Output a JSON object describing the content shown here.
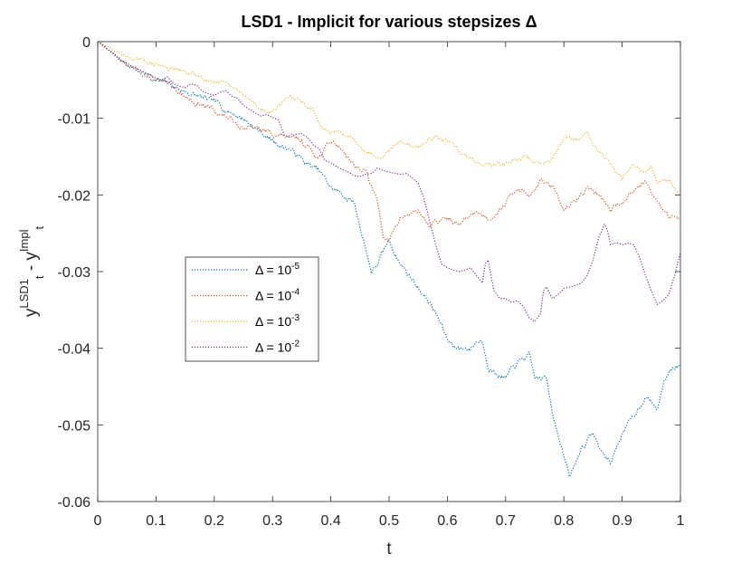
{
  "chart_data": {
    "type": "line",
    "title": "LSD1 - Implicit for various stepsizes Δ",
    "xlabel": "t",
    "ylabel": {
      "main": "y",
      "sub1": "t",
      "sup1": "LSD1",
      "mid": " - y",
      "sub2": "t",
      "sup2": "Impl"
    },
    "xlim": [
      0,
      1
    ],
    "ylim": [
      -0.06,
      0
    ],
    "xticks": [
      0,
      0.1,
      0.2,
      0.3,
      0.4,
      0.5,
      0.6,
      0.7,
      0.8,
      0.9,
      1
    ],
    "xtick_labels": [
      "0",
      "0.1",
      "0.2",
      "0.3",
      "0.4",
      "0.5",
      "0.6",
      "0.7",
      "0.8",
      "0.9",
      "1"
    ],
    "yticks": [
      0,
      -0.01,
      -0.02,
      -0.03,
      -0.04,
      -0.05,
      -0.06
    ],
    "ytick_labels": [
      "0",
      "-0.01",
      "-0.02",
      "-0.03",
      "-0.04",
      "-0.05",
      "-0.06"
    ],
    "legend_position": "middle-left",
    "series": [
      {
        "name": "Δ = 10^-5",
        "base": "Δ = 10",
        "exp": "-5",
        "color": "#0072BD",
        "noise": 0.00055,
        "seed": 7,
        "points": [
          [
            0,
            0
          ],
          [
            0.05,
            -0.003
          ],
          [
            0.1,
            -0.005
          ],
          [
            0.15,
            -0.0065
          ],
          [
            0.2,
            -0.008
          ],
          [
            0.25,
            -0.01
          ],
          [
            0.3,
            -0.013
          ],
          [
            0.33,
            -0.014
          ],
          [
            0.36,
            -0.016
          ],
          [
            0.38,
            -0.017
          ],
          [
            0.4,
            -0.019
          ],
          [
            0.42,
            -0.02
          ],
          [
            0.44,
            -0.021
          ],
          [
            0.45,
            -0.024
          ],
          [
            0.47,
            -0.03
          ],
          [
            0.48,
            -0.029
          ],
          [
            0.5,
            -0.026
          ],
          [
            0.52,
            -0.029
          ],
          [
            0.55,
            -0.032
          ],
          [
            0.57,
            -0.034
          ],
          [
            0.59,
            -0.037
          ],
          [
            0.6,
            -0.039
          ],
          [
            0.62,
            -0.04
          ],
          [
            0.64,
            -0.04
          ],
          [
            0.65,
            -0.039
          ],
          [
            0.66,
            -0.039
          ],
          [
            0.67,
            -0.042
          ],
          [
            0.68,
            -0.043
          ],
          [
            0.7,
            -0.044
          ],
          [
            0.72,
            -0.042
          ],
          [
            0.74,
            -0.041
          ],
          [
            0.75,
            -0.044
          ],
          [
            0.77,
            -0.044
          ],
          [
            0.78,
            -0.048
          ],
          [
            0.8,
            -0.054
          ],
          [
            0.81,
            -0.057
          ],
          [
            0.83,
            -0.053
          ],
          [
            0.85,
            -0.051
          ],
          [
            0.86,
            -0.053
          ],
          [
            0.87,
            -0.054
          ],
          [
            0.88,
            -0.055
          ],
          [
            0.9,
            -0.051
          ],
          [
            0.92,
            -0.049
          ],
          [
            0.94,
            -0.046
          ],
          [
            0.95,
            -0.047
          ],
          [
            0.96,
            -0.048
          ],
          [
            0.97,
            -0.045
          ],
          [
            0.98,
            -0.043
          ],
          [
            1,
            -0.042
          ]
        ]
      },
      {
        "name": "Δ = 10^-4",
        "base": "Δ = 10",
        "exp": "-4",
        "color": "#D95319",
        "noise": 0.0005,
        "seed": 13,
        "points": [
          [
            0,
            0
          ],
          [
            0.05,
            -0.003
          ],
          [
            0.1,
            -0.005
          ],
          [
            0.14,
            -0.0065
          ],
          [
            0.15,
            -0.007
          ],
          [
            0.17,
            -0.008
          ],
          [
            0.2,
            -0.009
          ],
          [
            0.25,
            -0.011
          ],
          [
            0.3,
            -0.012
          ],
          [
            0.35,
            -0.013
          ],
          [
            0.38,
            -0.015
          ],
          [
            0.4,
            -0.013
          ],
          [
            0.42,
            -0.014
          ],
          [
            0.44,
            -0.016
          ],
          [
            0.46,
            -0.017
          ],
          [
            0.48,
            -0.021
          ],
          [
            0.49,
            -0.025
          ],
          [
            0.5,
            -0.026
          ],
          [
            0.52,
            -0.023
          ],
          [
            0.55,
            -0.022
          ],
          [
            0.57,
            -0.024
          ],
          [
            0.6,
            -0.023
          ],
          [
            0.62,
            -0.024
          ],
          [
            0.65,
            -0.022
          ],
          [
            0.67,
            -0.023
          ],
          [
            0.7,
            -0.021
          ],
          [
            0.72,
            -0.019
          ],
          [
            0.74,
            -0.02
          ],
          [
            0.76,
            -0.018
          ],
          [
            0.78,
            -0.019
          ],
          [
            0.8,
            -0.022
          ],
          [
            0.82,
            -0.021
          ],
          [
            0.84,
            -0.019
          ],
          [
            0.86,
            -0.02
          ],
          [
            0.88,
            -0.022
          ],
          [
            0.9,
            -0.021
          ],
          [
            0.92,
            -0.019
          ],
          [
            0.94,
            -0.018
          ],
          [
            0.95,
            -0.019
          ],
          [
            0.96,
            -0.021
          ],
          [
            0.97,
            -0.022
          ],
          [
            0.98,
            -0.023
          ],
          [
            1,
            -0.023
          ]
        ]
      },
      {
        "name": "Δ = 10^-3",
        "base": "Δ = 10",
        "exp": "-3",
        "color": "#EDB120",
        "noise": 0.0004,
        "seed": 29,
        "points": [
          [
            0,
            0
          ],
          [
            0.05,
            -0.002
          ],
          [
            0.1,
            -0.003
          ],
          [
            0.15,
            -0.004
          ],
          [
            0.2,
            -0.005
          ],
          [
            0.25,
            -0.007
          ],
          [
            0.28,
            -0.009
          ],
          [
            0.3,
            -0.009
          ],
          [
            0.33,
            -0.007
          ],
          [
            0.35,
            -0.008
          ],
          [
            0.37,
            -0.009
          ],
          [
            0.38,
            -0.011
          ],
          [
            0.4,
            -0.012
          ],
          [
            0.42,
            -0.012
          ],
          [
            0.44,
            -0.013
          ],
          [
            0.46,
            -0.014
          ],
          [
            0.48,
            -0.015
          ],
          [
            0.5,
            -0.014
          ],
          [
            0.52,
            -0.013
          ],
          [
            0.55,
            -0.014
          ],
          [
            0.58,
            -0.012
          ],
          [
            0.6,
            -0.013
          ],
          [
            0.63,
            -0.015
          ],
          [
            0.66,
            -0.016
          ],
          [
            0.7,
            -0.016
          ],
          [
            0.73,
            -0.015
          ],
          [
            0.76,
            -0.016
          ],
          [
            0.78,
            -0.015
          ],
          [
            0.8,
            -0.013
          ],
          [
            0.82,
            -0.013
          ],
          [
            0.84,
            -0.012
          ],
          [
            0.86,
            -0.014
          ],
          [
            0.88,
            -0.016
          ],
          [
            0.9,
            -0.018
          ],
          [
            0.92,
            -0.016
          ],
          [
            0.94,
            -0.017
          ],
          [
            0.95,
            -0.016
          ],
          [
            0.96,
            -0.018
          ],
          [
            0.98,
            -0.018
          ],
          [
            1,
            -0.02
          ]
        ]
      },
      {
        "name": "Δ = 10^-2",
        "base": "Δ = 10",
        "exp": "-2",
        "color": "#7E2F8E",
        "noise": 0,
        "seed": 1,
        "points": [
          [
            0,
            0
          ],
          [
            0.01,
            -0.0005
          ],
          [
            0.02,
            -0.0012
          ],
          [
            0.03,
            -0.0018
          ],
          [
            0.04,
            -0.0025
          ],
          [
            0.05,
            -0.0028
          ],
          [
            0.06,
            -0.0033
          ],
          [
            0.07,
            -0.0036
          ],
          [
            0.08,
            -0.004
          ],
          [
            0.09,
            -0.0043
          ],
          [
            0.1,
            -0.0048
          ],
          [
            0.11,
            -0.005
          ],
          [
            0.12,
            -0.0046
          ],
          [
            0.13,
            -0.0055
          ],
          [
            0.14,
            -0.0058
          ],
          [
            0.15,
            -0.006
          ],
          [
            0.16,
            -0.0055
          ],
          [
            0.17,
            -0.0057
          ],
          [
            0.18,
            -0.0065
          ],
          [
            0.19,
            -0.0068
          ],
          [
            0.2,
            -0.007
          ],
          [
            0.21,
            -0.0066
          ],
          [
            0.22,
            -0.0064
          ],
          [
            0.23,
            -0.0071
          ],
          [
            0.24,
            -0.0074
          ],
          [
            0.25,
            -0.0083
          ],
          [
            0.26,
            -0.0088
          ],
          [
            0.27,
            -0.0093
          ],
          [
            0.28,
            -0.0097
          ],
          [
            0.29,
            -0.0095
          ],
          [
            0.3,
            -0.0099
          ],
          [
            0.31,
            -0.0102
          ],
          [
            0.32,
            -0.0122
          ],
          [
            0.33,
            -0.0125
          ],
          [
            0.34,
            -0.0121
          ],
          [
            0.35,
            -0.012
          ],
          [
            0.36,
            -0.0125
          ],
          [
            0.37,
            -0.0135
          ],
          [
            0.38,
            -0.014
          ],
          [
            0.39,
            -0.0155
          ],
          [
            0.4,
            -0.0158
          ],
          [
            0.41,
            -0.0163
          ],
          [
            0.42,
            -0.0167
          ],
          [
            0.43,
            -0.017
          ],
          [
            0.44,
            -0.0175
          ],
          [
            0.45,
            -0.0176
          ],
          [
            0.46,
            -0.0173
          ],
          [
            0.47,
            -0.0172
          ],
          [
            0.48,
            -0.0165
          ],
          [
            0.49,
            -0.0168
          ],
          [
            0.5,
            -0.017
          ],
          [
            0.51,
            -0.0172
          ],
          [
            0.52,
            -0.0173
          ],
          [
            0.53,
            -0.0172
          ],
          [
            0.54,
            -0.0178
          ],
          [
            0.55,
            -0.0185
          ],
          [
            0.56,
            -0.0205
          ],
          [
            0.57,
            -0.0235
          ],
          [
            0.58,
            -0.0265
          ],
          [
            0.59,
            -0.029
          ],
          [
            0.6,
            -0.0295
          ],
          [
            0.61,
            -0.0298
          ],
          [
            0.62,
            -0.03
          ],
          [
            0.63,
            -0.0298
          ],
          [
            0.64,
            -0.0295
          ],
          [
            0.65,
            -0.0305
          ],
          [
            0.66,
            -0.0315
          ],
          [
            0.665,
            -0.029
          ],
          [
            0.67,
            -0.0285
          ],
          [
            0.68,
            -0.0325
          ],
          [
            0.69,
            -0.0335
          ],
          [
            0.7,
            -0.0335
          ],
          [
            0.71,
            -0.034
          ],
          [
            0.72,
            -0.0338
          ],
          [
            0.73,
            -0.0345
          ],
          [
            0.74,
            -0.036
          ],
          [
            0.75,
            -0.0365
          ],
          [
            0.76,
            -0.0355
          ],
          [
            0.765,
            -0.0325
          ],
          [
            0.77,
            -0.032
          ],
          [
            0.78,
            -0.0335
          ],
          [
            0.79,
            -0.033
          ],
          [
            0.8,
            -0.0322
          ],
          [
            0.81,
            -0.032
          ],
          [
            0.82,
            -0.0318
          ],
          [
            0.83,
            -0.0315
          ],
          [
            0.84,
            -0.0305
          ],
          [
            0.85,
            -0.0285
          ],
          [
            0.86,
            -0.0255
          ],
          [
            0.87,
            -0.0238
          ],
          [
            0.875,
            -0.0247
          ],
          [
            0.88,
            -0.0265
          ],
          [
            0.89,
            -0.0262
          ],
          [
            0.9,
            -0.0265
          ],
          [
            0.91,
            -0.0263
          ],
          [
            0.92,
            -0.0265
          ],
          [
            0.93,
            -0.0282
          ],
          [
            0.94,
            -0.0305
          ],
          [
            0.95,
            -0.0325
          ],
          [
            0.96,
            -0.0343
          ],
          [
            0.97,
            -0.0338
          ],
          [
            0.98,
            -0.033
          ],
          [
            0.99,
            -0.0305
          ],
          [
            1,
            -0.0275
          ]
        ]
      }
    ]
  }
}
